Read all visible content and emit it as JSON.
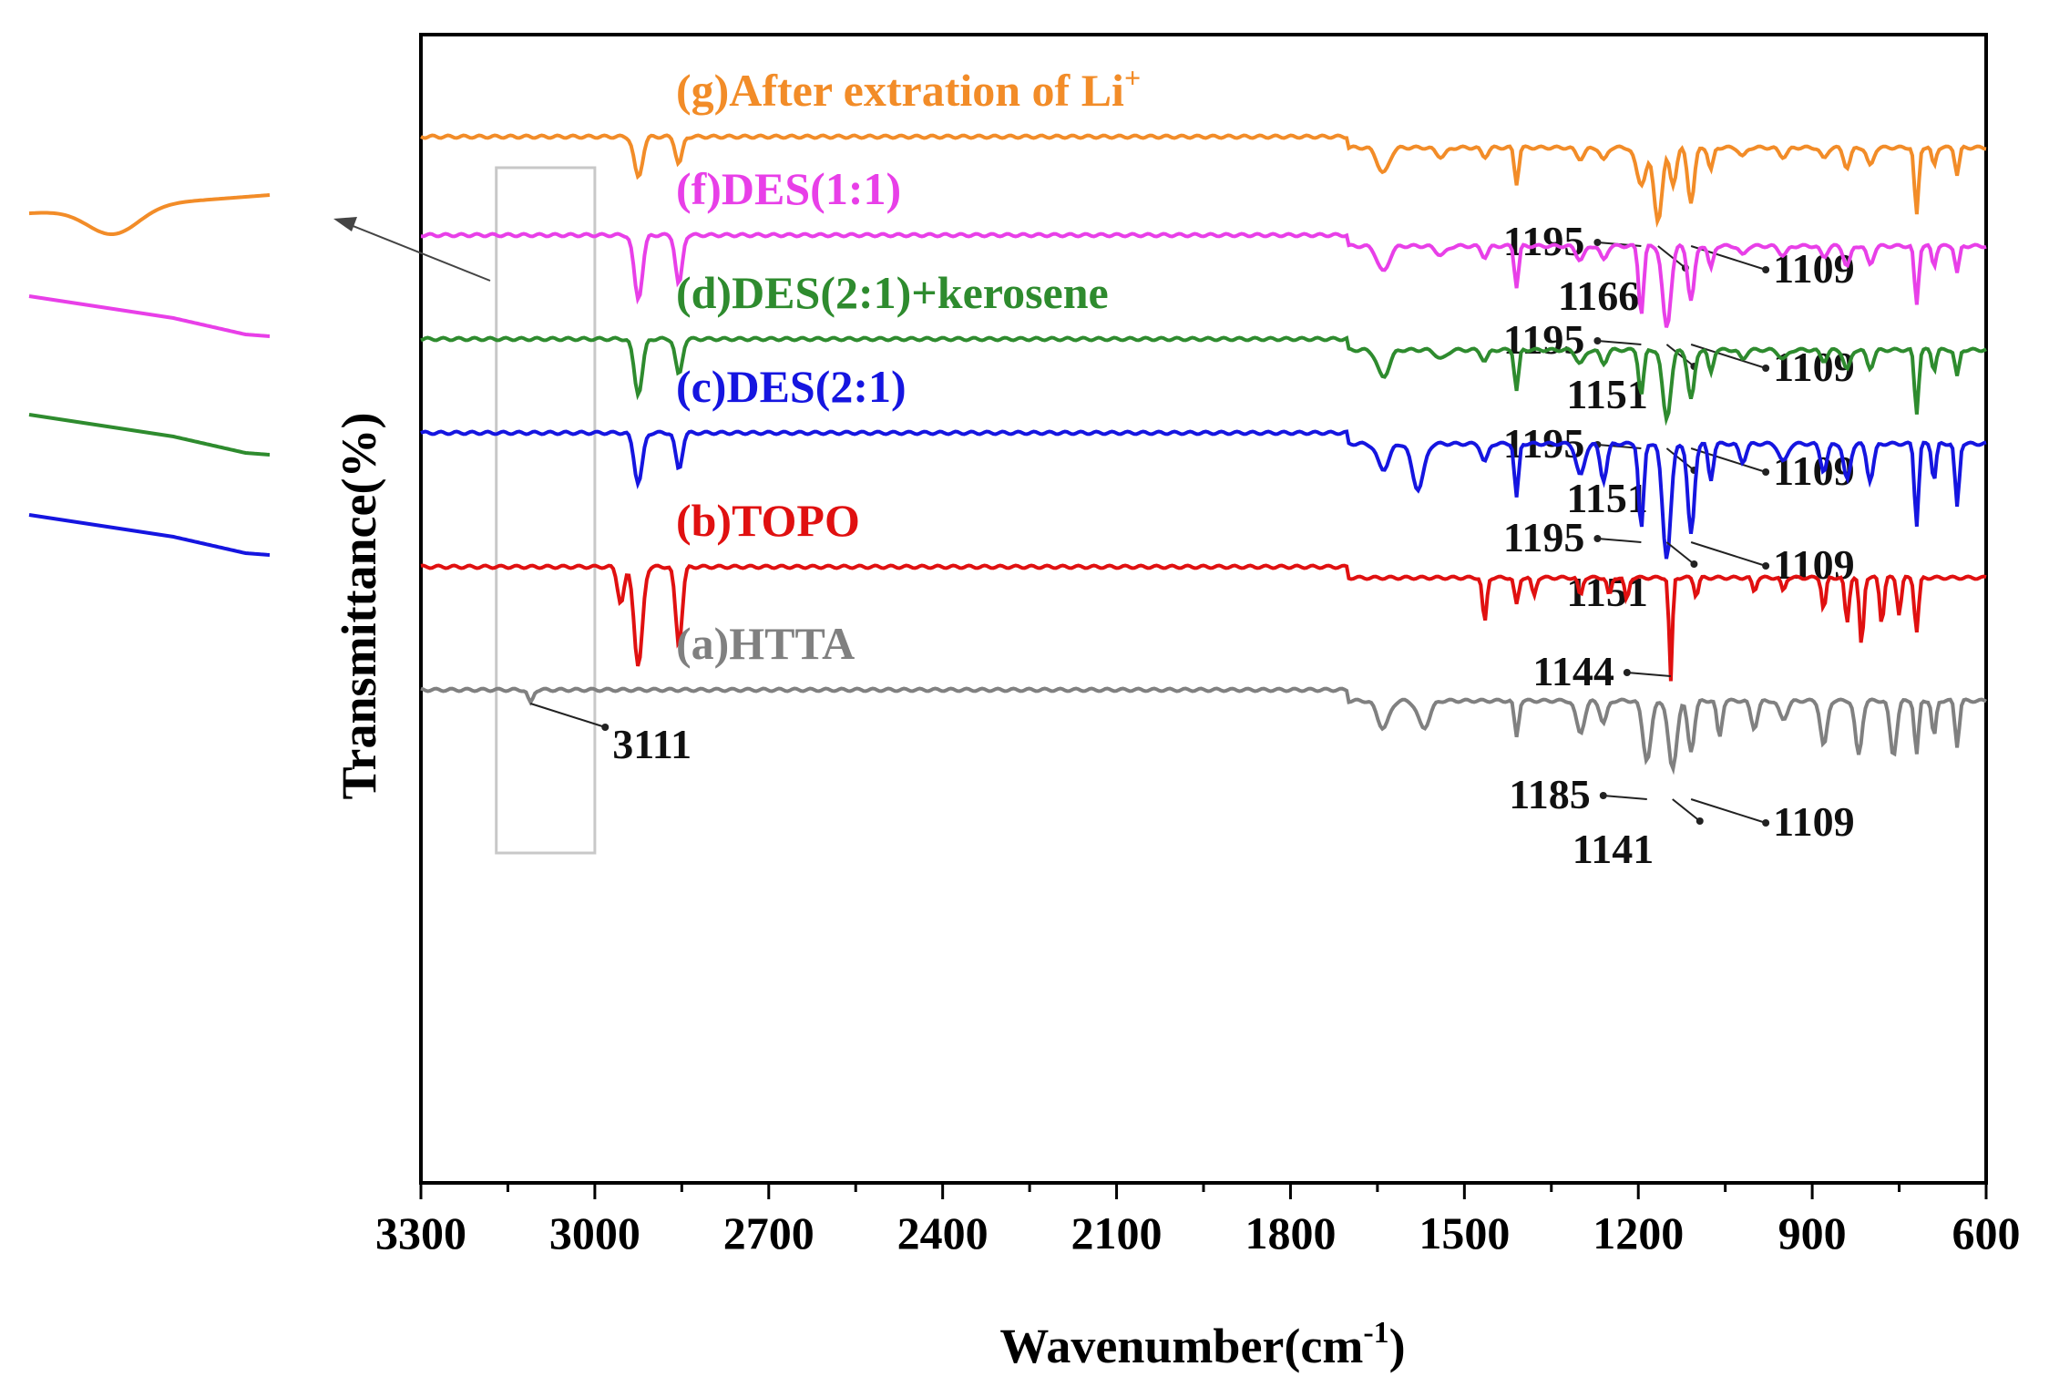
{
  "chart_data": {
    "type": "line",
    "title": "",
    "xlabel": "Wavenumber(cm",
    "xlabel_sup": "-1",
    "xlabel_end": ")",
    "ylabel": "Transmittance(%)",
    "xlim": [
      3300,
      600
    ],
    "x_ticks": [
      "3300",
      "3000",
      "2700",
      "2400",
      "2100",
      "1800",
      "1500",
      "1200",
      "900",
      "600"
    ],
    "series": [
      {
        "name": "(g)After extration of Li",
        "sup": "+",
        "color": "#F28C28",
        "baseline": 150,
        "dips": [
          [
            2925,
            45,
            10
          ],
          [
            2855,
            30,
            8
          ],
          [
            1640,
            28,
            14
          ],
          [
            1540,
            10,
            12
          ],
          [
            1465,
            10,
            8
          ],
          [
            1410,
            40,
            5
          ],
          [
            1300,
            12,
            10
          ],
          [
            1260,
            14,
            8
          ],
          [
            1195,
            40,
            12
          ],
          [
            1166,
            80,
            10
          ],
          [
            1140,
            40,
            8
          ],
          [
            1109,
            60,
            8
          ],
          [
            1075,
            25,
            6
          ],
          [
            1020,
            10,
            8
          ],
          [
            950,
            10,
            10
          ],
          [
            880,
            12,
            8
          ],
          [
            840,
            22,
            8
          ],
          [
            800,
            20,
            8
          ],
          [
            720,
            75,
            5
          ],
          [
            690,
            20,
            5
          ],
          [
            650,
            30,
            5
          ]
        ],
        "annotations": [
          {
            "text": "1195",
            "side": "left",
            "target": 1195
          },
          {
            "text": "1166",
            "side": "down",
            "target": 1166
          },
          {
            "text": "1109",
            "side": "right",
            "target": 1109
          }
        ]
      },
      {
        "name": "(f)DES(1:1)",
        "color": "#E83FE8",
        "baseline": 258,
        "dips": [
          [
            2925,
            70,
            10
          ],
          [
            2855,
            55,
            8
          ],
          [
            1640,
            28,
            14
          ],
          [
            1540,
            10,
            12
          ],
          [
            1465,
            12,
            8
          ],
          [
            1410,
            45,
            5
          ],
          [
            1300,
            15,
            10
          ],
          [
            1260,
            15,
            8
          ],
          [
            1195,
            75,
            6
          ],
          [
            1151,
            90,
            10
          ],
          [
            1109,
            60,
            8
          ],
          [
            1075,
            25,
            6
          ],
          [
            1020,
            10,
            8
          ],
          [
            950,
            10,
            10
          ],
          [
            880,
            12,
            8
          ],
          [
            840,
            22,
            8
          ],
          [
            800,
            20,
            8
          ],
          [
            720,
            65,
            5
          ],
          [
            690,
            22,
            5
          ],
          [
            650,
            30,
            5
          ]
        ],
        "annotations": [
          {
            "text": "1195",
            "side": "left",
            "target": 1195
          },
          {
            "text": "1151",
            "side": "down",
            "target": 1151
          },
          {
            "text": "1109",
            "side": "right",
            "target": 1109
          }
        ]
      },
      {
        "name": "(d)DES(2:1)+kerosene",
        "color": "#2E8B2E",
        "baseline": 372,
        "dips": [
          [
            2925,
            60,
            10
          ],
          [
            2855,
            40,
            8
          ],
          [
            1640,
            30,
            14
          ],
          [
            1540,
            10,
            12
          ],
          [
            1465,
            12,
            8
          ],
          [
            1410,
            45,
            5
          ],
          [
            1300,
            15,
            10
          ],
          [
            1260,
            15,
            8
          ],
          [
            1195,
            50,
            6
          ],
          [
            1151,
            75,
            10
          ],
          [
            1109,
            55,
            8
          ],
          [
            1075,
            25,
            6
          ],
          [
            1020,
            10,
            8
          ],
          [
            950,
            10,
            10
          ],
          [
            880,
            12,
            8
          ],
          [
            840,
            22,
            8
          ],
          [
            800,
            20,
            8
          ],
          [
            720,
            70,
            5
          ],
          [
            690,
            22,
            5
          ],
          [
            650,
            30,
            5
          ]
        ],
        "annotations": [
          {
            "text": "1195",
            "side": "left",
            "target": 1195
          },
          {
            "text": "1151",
            "side": "down",
            "target": 1151
          },
          {
            "text": "1109",
            "side": "right",
            "target": 1109
          }
        ]
      },
      {
        "name": "(c)DES(2:1)",
        "color": "#1515E0",
        "baseline": 475,
        "dips": [
          [
            2925,
            55,
            10
          ],
          [
            2855,
            40,
            8
          ],
          [
            1640,
            28,
            14
          ],
          [
            1580,
            50,
            14
          ],
          [
            1465,
            20,
            8
          ],
          [
            1410,
            60,
            5
          ],
          [
            1300,
            35,
            10
          ],
          [
            1260,
            40,
            8
          ],
          [
            1195,
            95,
            6
          ],
          [
            1151,
            125,
            10
          ],
          [
            1109,
            100,
            8
          ],
          [
            1075,
            40,
            6
          ],
          [
            1020,
            20,
            8
          ],
          [
            950,
            20,
            10
          ],
          [
            880,
            30,
            8
          ],
          [
            840,
            40,
            8
          ],
          [
            800,
            40,
            8
          ],
          [
            720,
            90,
            5
          ],
          [
            690,
            40,
            5
          ],
          [
            650,
            70,
            5
          ]
        ],
        "annotations": [
          {
            "text": "1195",
            "side": "left",
            "target": 1195
          },
          {
            "text": "1151",
            "side": "down",
            "target": 1151
          },
          {
            "text": "1109",
            "side": "right",
            "target": 1109
          }
        ]
      },
      {
        "name": "(b)TOPO",
        "color": "#E01010",
        "baseline": 622,
        "dips": [
          [
            2955,
            40,
            8
          ],
          [
            2925,
            110,
            10
          ],
          [
            2855,
            85,
            8
          ],
          [
            1465,
            50,
            5
          ],
          [
            1410,
            30,
            5
          ],
          [
            1380,
            20,
            5
          ],
          [
            1300,
            20,
            5
          ],
          [
            1250,
            20,
            5
          ],
          [
            1220,
            25,
            5
          ],
          [
            1144,
            115,
            4
          ],
          [
            1100,
            20,
            5
          ],
          [
            1000,
            15,
            5
          ],
          [
            950,
            15,
            5
          ],
          [
            880,
            35,
            5
          ],
          [
            840,
            50,
            5
          ],
          [
            815,
            75,
            5
          ],
          [
            780,
            50,
            5
          ],
          [
            750,
            40,
            5
          ],
          [
            720,
            60,
            5
          ]
        ],
        "annotations": [
          {
            "text": "1144",
            "side": "left",
            "target": 1144
          }
        ]
      },
      {
        "name": "(a)HTTA",
        "color": "#808080",
        "baseline": 757,
        "dips": [
          [
            3111,
            15,
            6
          ],
          [
            1640,
            30,
            14
          ],
          [
            1570,
            30,
            14
          ],
          [
            1410,
            40,
            5
          ],
          [
            1300,
            35,
            10
          ],
          [
            1260,
            25,
            8
          ],
          [
            1185,
            65,
            10
          ],
          [
            1141,
            75,
            10
          ],
          [
            1109,
            55,
            8
          ],
          [
            1060,
            40,
            6
          ],
          [
            1000,
            30,
            8
          ],
          [
            950,
            20,
            10
          ],
          [
            880,
            50,
            8
          ],
          [
            820,
            60,
            8
          ],
          [
            760,
            60,
            8
          ],
          [
            720,
            60,
            5
          ],
          [
            690,
            40,
            5
          ],
          [
            650,
            50,
            5
          ]
        ],
        "annotations": [
          {
            "text": "3111",
            "side": "right",
            "target": 3111
          },
          {
            "text": "1185",
            "side": "left",
            "target": 1185
          },
          {
            "text": "1141",
            "side": "down",
            "target": 1141
          },
          {
            "text": "1109",
            "side": "right",
            "target": 1109
          }
        ]
      }
    ],
    "highlight_box": {
      "x_from": 3170,
      "x_to": 3000
    },
    "inset": {
      "description_series_order": [
        "(g)After extration of Li",
        "(f)DES(1:1)",
        "(d)DES(2:1)+kerosene",
        "(c)DES(2:1)"
      ]
    }
  }
}
